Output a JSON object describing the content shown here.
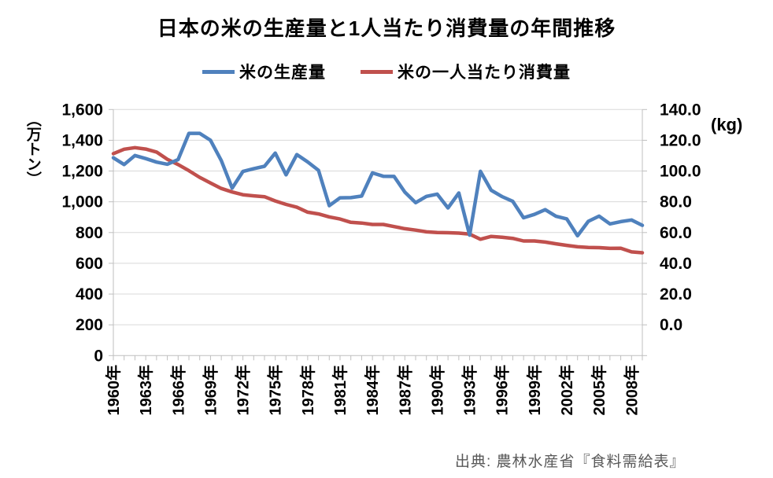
{
  "title": "日本の米の生産量と1人当たり消費量の年間推移",
  "legend": [
    {
      "label": "米の生産量",
      "color": "#4F81BD"
    },
    {
      "label": "米の一人当たり消費量",
      "color": "#C0504D"
    }
  ],
  "left_axis": {
    "unit": "（万トン）",
    "ticks": [
      "1,600",
      "1,400",
      "1,200",
      "1,000",
      "800",
      "600",
      "400",
      "200",
      "0"
    ],
    "max": 1600,
    "step": 200
  },
  "right_axis": {
    "unit": "(kg)",
    "ticks": [
      "140.0",
      "120.0",
      "100.0",
      "80.0",
      "60.0",
      "40.0",
      "20.0",
      "0.0"
    ],
    "max": 140,
    "step": 20
  },
  "source": "出典: 農林水産省『食料需給表』",
  "colors": {
    "gridline": "#D9D9D9",
    "axis": "#BFBFBF",
    "text": "#000000",
    "production": "#4F81BD",
    "consumption": "#C0504D"
  },
  "chart_data": {
    "type": "line",
    "x": [
      1960,
      1961,
      1962,
      1963,
      1964,
      1965,
      1966,
      1967,
      1968,
      1969,
      1970,
      1971,
      1972,
      1973,
      1974,
      1975,
      1976,
      1977,
      1978,
      1979,
      1980,
      1981,
      1982,
      1983,
      1984,
      1985,
      1986,
      1987,
      1988,
      1989,
      1990,
      1991,
      1992,
      1993,
      1994,
      1995,
      1996,
      1997,
      1998,
      1999,
      2000,
      2001,
      2002,
      2003,
      2004,
      2005,
      2006,
      2007,
      2008,
      2009
    ],
    "x_label_suffix": "年",
    "x_label_every": 3,
    "series": [
      {
        "name": "米の生産量",
        "axis": "left",
        "unit": "万トン",
        "color": "#4F81BD",
        "values": [
          1286,
          1242,
          1301,
          1281,
          1258,
          1244,
          1275,
          1445,
          1445,
          1400,
          1268,
          1089,
          1197,
          1215,
          1231,
          1317,
          1175,
          1307,
          1259,
          1205,
          975,
          1026,
          1027,
          1037,
          1188,
          1166,
          1165,
          1063,
          994,
          1035,
          1050,
          960,
          1057,
          783,
          1198,
          1075,
          1034,
          1003,
          896,
          918,
          949,
          906,
          889,
          779,
          873,
          907,
          856,
          871,
          882,
          847
        ]
      },
      {
        "name": "米の一人当たり消費量",
        "axis": "right",
        "unit": "kg",
        "color": "#C0504D",
        "values": [
          114.9,
          117.4,
          118.3,
          117.5,
          115.8,
          111.7,
          108.7,
          105.2,
          101.4,
          98.2,
          95.1,
          93.1,
          91.5,
          90.9,
          90.4,
          88.0,
          86.0,
          84.4,
          81.6,
          80.6,
          78.9,
          77.7,
          75.8,
          75.4,
          74.6,
          74.6,
          73.4,
          72.2,
          71.4,
          70.4,
          70.0,
          69.9,
          69.7,
          69.1,
          66.2,
          67.8,
          67.3,
          66.7,
          65.2,
          65.2,
          64.6,
          63.6,
          62.7,
          61.9,
          61.5,
          61.4,
          61.0,
          61.1,
          59.0,
          58.5
        ]
      }
    ],
    "title": "日本の米の生産量と1人当たり消費量の年間推移",
    "left_ylabel": "（万トン）",
    "right_ylabel": "(kg)",
    "left_ylim": [
      0,
      1600
    ],
    "right_ylim": [
      0,
      140
    ],
    "grid": "horizontal"
  }
}
